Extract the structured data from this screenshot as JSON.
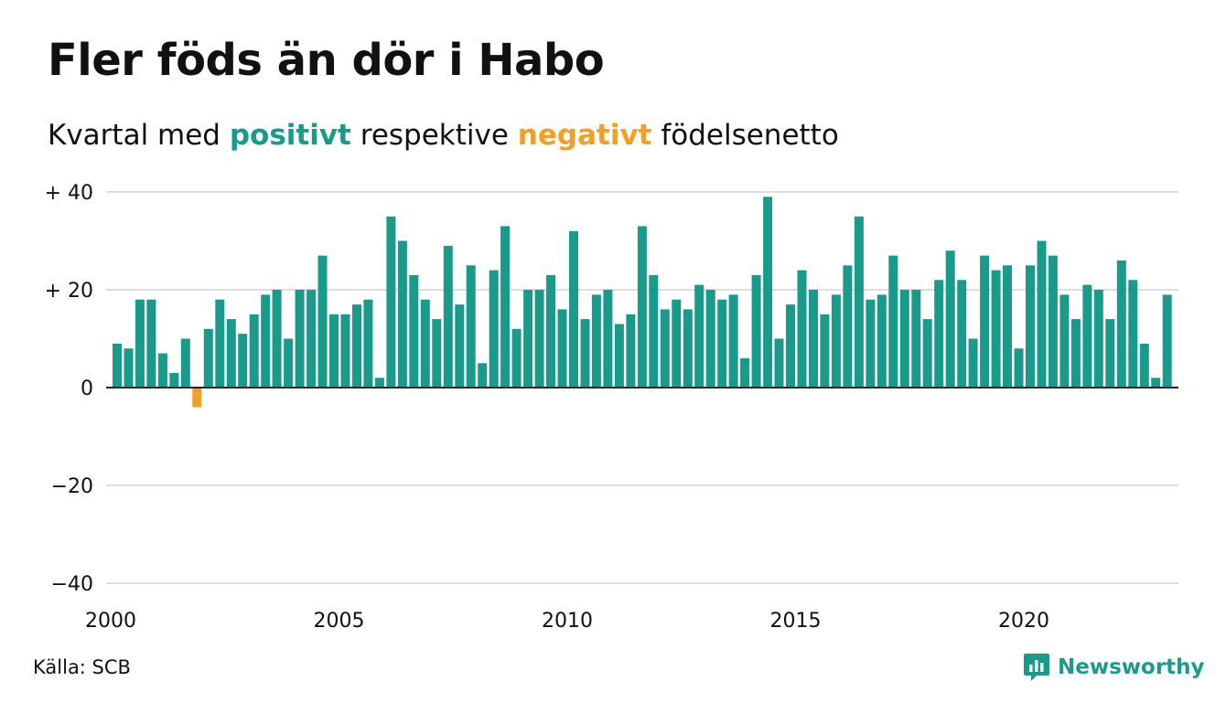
{
  "title": "Fler föds än dör i Habo",
  "subtitle": {
    "prefix": "Kvartal med",
    "positive_word": "positivt",
    "middle": "respektive",
    "negative_word": "negativt",
    "suffix": "födelsenetto"
  },
  "source": "Källa: SCB",
  "brand": {
    "name": "Newsworthy",
    "icon": "newsworthy-logo-icon"
  },
  "colors": {
    "positive": "#1a9a8a",
    "negative": "#f2a023",
    "grid": "#dddddd",
    "zero_line": "#222222",
    "text": "#111111"
  },
  "chart_data": {
    "type": "bar",
    "title": "Fler föds än dör i Habo",
    "subtitle": "Kvartal med positivt respektive negativt födelsenetto",
    "xlabel": "",
    "ylabel": "",
    "ylim": [
      -40,
      40
    ],
    "yticks": [
      40,
      20,
      0,
      -20,
      -40
    ],
    "ytick_labels": [
      "+ 40",
      "+ 20",
      "0",
      "−20",
      "−40"
    ],
    "xticks": [
      2000,
      2005,
      2010,
      2015,
      2020
    ],
    "xtick_labels": [
      "2000",
      "2005",
      "2010",
      "2015",
      "2020"
    ],
    "grid": true,
    "start_year": 2000,
    "periods_per_year": 4,
    "values": [
      9,
      8,
      18,
      18,
      7,
      3,
      10,
      -4,
      12,
      18,
      14,
      11,
      15,
      19,
      20,
      10,
      20,
      20,
      27,
      15,
      15,
      17,
      18,
      2,
      35,
      30,
      23,
      18,
      14,
      29,
      17,
      25,
      5,
      24,
      33,
      12,
      20,
      20,
      23,
      16,
      32,
      14,
      19,
      20,
      13,
      15,
      33,
      23,
      16,
      18,
      16,
      21,
      20,
      18,
      19,
      6,
      23,
      39,
      10,
      17,
      24,
      20,
      15,
      19,
      25,
      35,
      18,
      19,
      27,
      20,
      20,
      14,
      22,
      28,
      22,
      10,
      27,
      24,
      25,
      8,
      25,
      30,
      27,
      19,
      14,
      21,
      20,
      14,
      26,
      22,
      9,
      2,
      19
    ]
  }
}
